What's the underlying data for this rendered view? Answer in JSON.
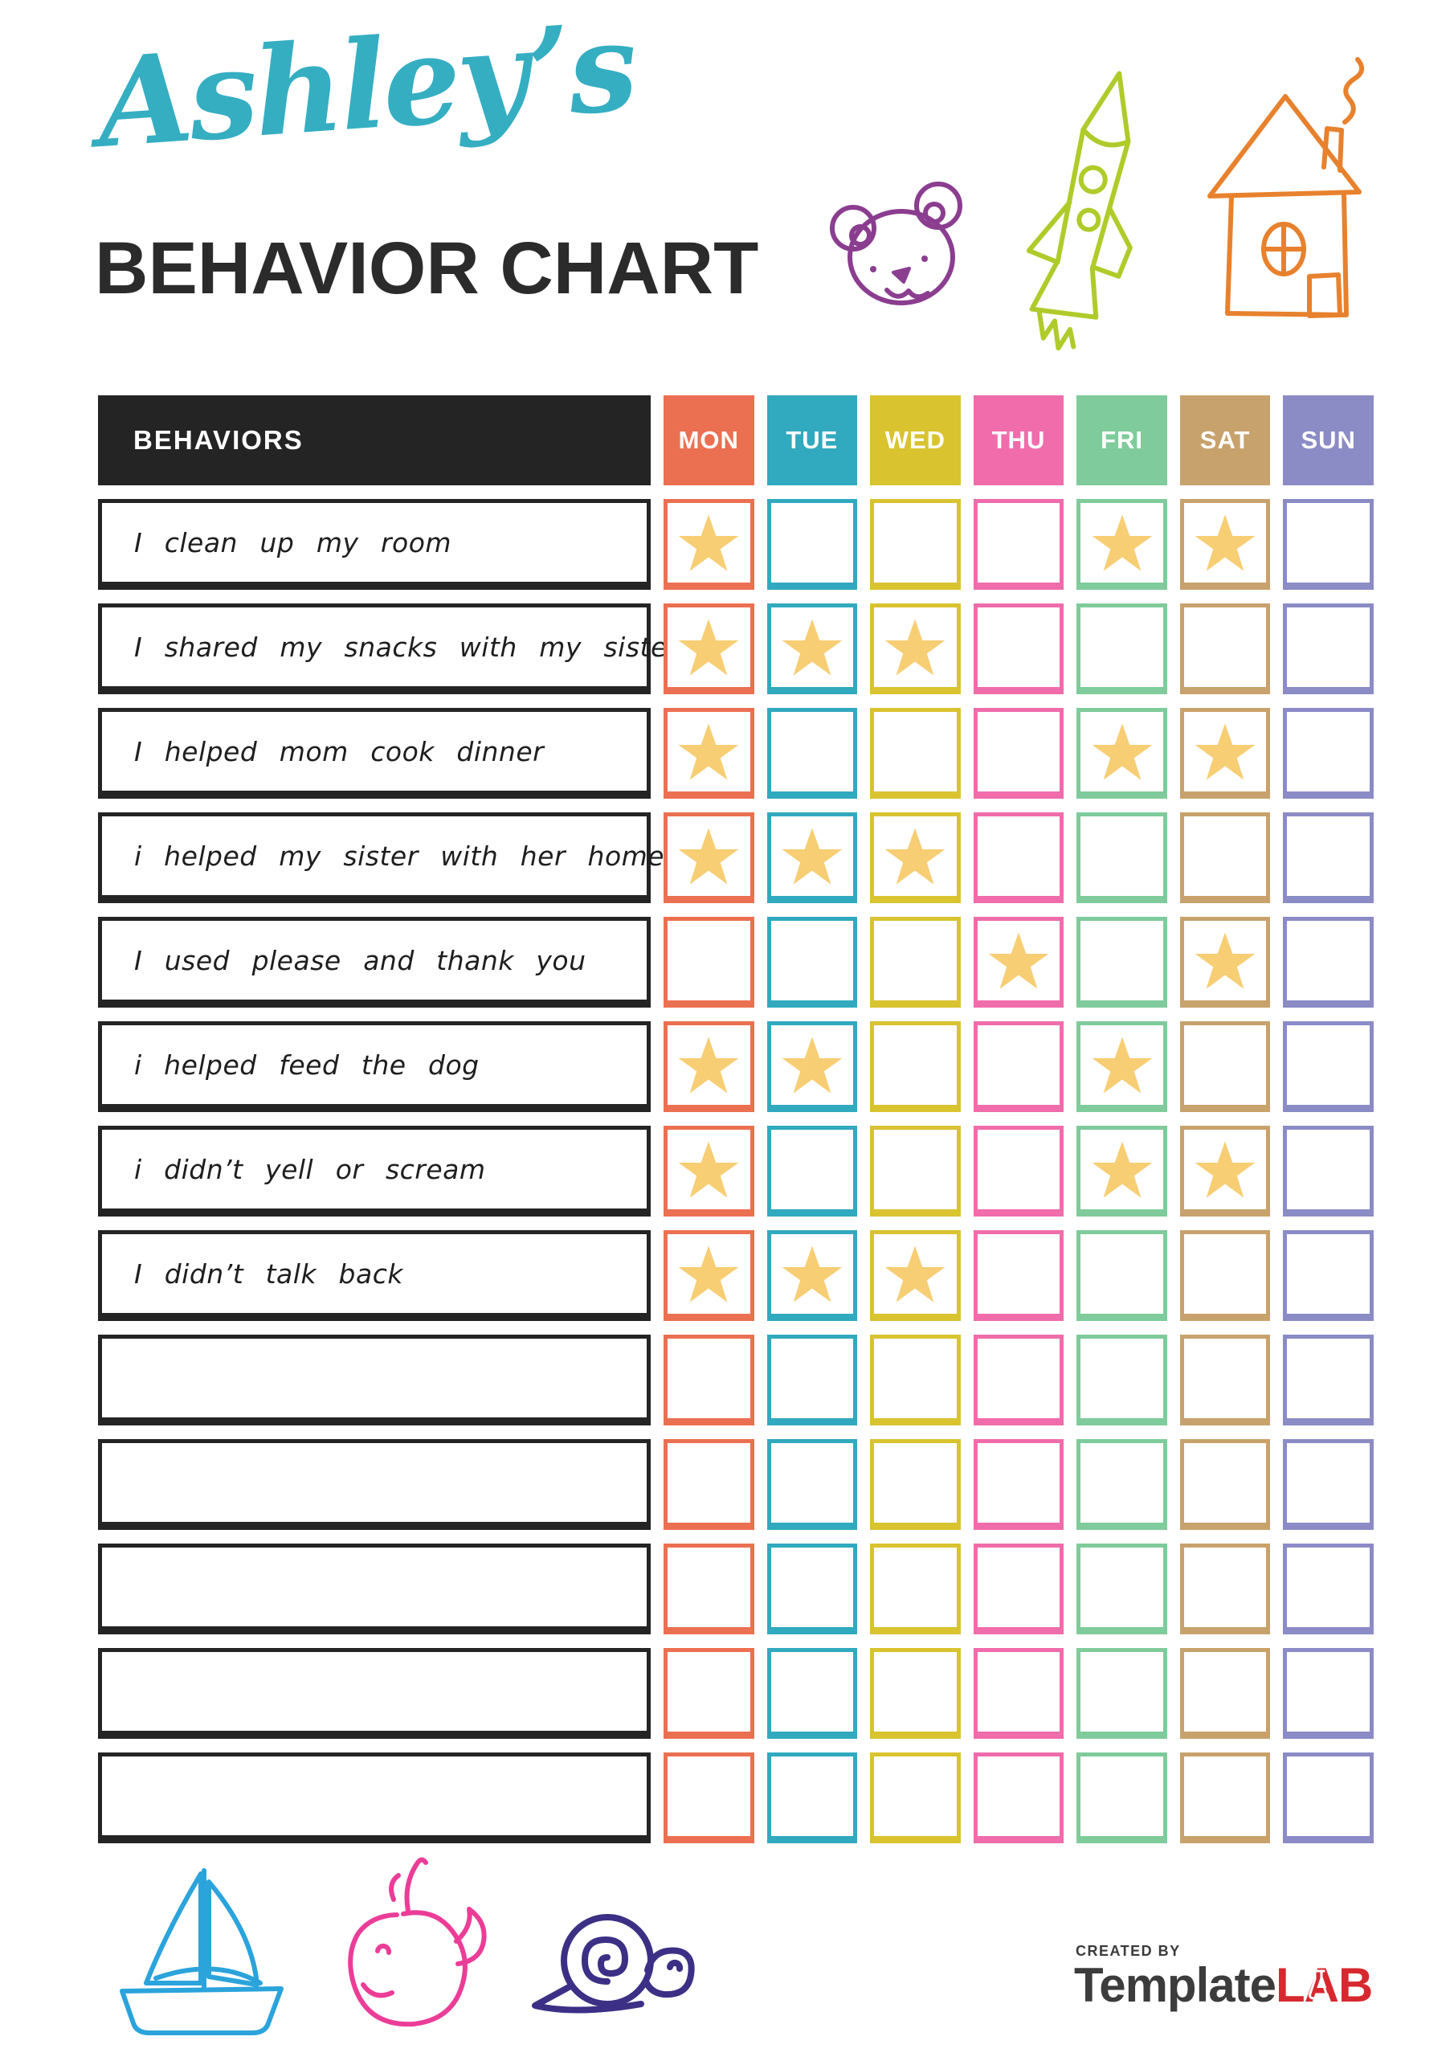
{
  "header": {
    "name": "Ashley’s",
    "title": "BEHAVIOR CHART"
  },
  "table": {
    "behaviors_header": "BEHAVIORS",
    "days": [
      {
        "label": "MON",
        "color": "#EB7052"
      },
      {
        "label": "TUE",
        "color": "#31A9BE"
      },
      {
        "label": "WED",
        "color": "#D9C32F"
      },
      {
        "label": "THU",
        "color": "#F06CAB"
      },
      {
        "label": "FRI",
        "color": "#7FCB9B"
      },
      {
        "label": "SAT",
        "color": "#C8A26C"
      },
      {
        "label": "SUN",
        "color": "#8B8BC6"
      }
    ],
    "rows": [
      {
        "label": "I clean up my room",
        "stars": [
          1,
          0,
          0,
          0,
          1,
          1,
          0
        ]
      },
      {
        "label": "I shared my snacks with my sister",
        "stars": [
          1,
          1,
          1,
          0,
          0,
          0,
          0
        ]
      },
      {
        "label": "I helped mom cook dinner",
        "stars": [
          1,
          0,
          0,
          0,
          1,
          1,
          0
        ]
      },
      {
        "label": "i helped my sister with her homework",
        "stars": [
          1,
          1,
          1,
          0,
          0,
          0,
          0
        ]
      },
      {
        "label": "I used please and thank you",
        "stars": [
          0,
          0,
          0,
          1,
          0,
          1,
          0
        ]
      },
      {
        "label": "i helped feed the dog",
        "stars": [
          1,
          1,
          0,
          0,
          1,
          0,
          0
        ]
      },
      {
        "label": "i didn’t yell or scream",
        "stars": [
          1,
          0,
          0,
          0,
          1,
          1,
          0
        ]
      },
      {
        "label": "I didn’t talk back",
        "stars": [
          1,
          1,
          1,
          0,
          0,
          0,
          0
        ]
      },
      {
        "label": "",
        "stars": [
          0,
          0,
          0,
          0,
          0,
          0,
          0
        ]
      },
      {
        "label": "",
        "stars": [
          0,
          0,
          0,
          0,
          0,
          0,
          0
        ]
      },
      {
        "label": "",
        "stars": [
          0,
          0,
          0,
          0,
          0,
          0,
          0
        ]
      },
      {
        "label": "",
        "stars": [
          0,
          0,
          0,
          0,
          0,
          0,
          0
        ]
      },
      {
        "label": "",
        "stars": [
          0,
          0,
          0,
          0,
          0,
          0,
          0
        ]
      }
    ]
  },
  "footer": {
    "created_by": "CREATED BY",
    "brand_template": "Template",
    "brand_lab": "LAB"
  },
  "colors": {
    "title_script": "#35AEC2",
    "title_main": "#2B2B2B",
    "header_black": "#242424",
    "star": "#F7CE74",
    "bear_doodle": "#8B3D90",
    "rocket_doodle": "#AFCB2A",
    "house_doodle": "#E8812D",
    "sailboat_doodle": "#2BA3DB",
    "whale_doodle": "#EB3D97",
    "snail_doodle": "#3B3085",
    "logo_gray": "#3C3C3C",
    "logo_red": "#D7282F"
  },
  "icons": {
    "top_doodles": [
      "bear-icon",
      "rocket-icon",
      "house-icon"
    ],
    "bottom_doodles": [
      "sailboat-icon",
      "whale-icon",
      "snail-icon"
    ],
    "star": "star-icon",
    "logo_flask": "flask-icon"
  }
}
